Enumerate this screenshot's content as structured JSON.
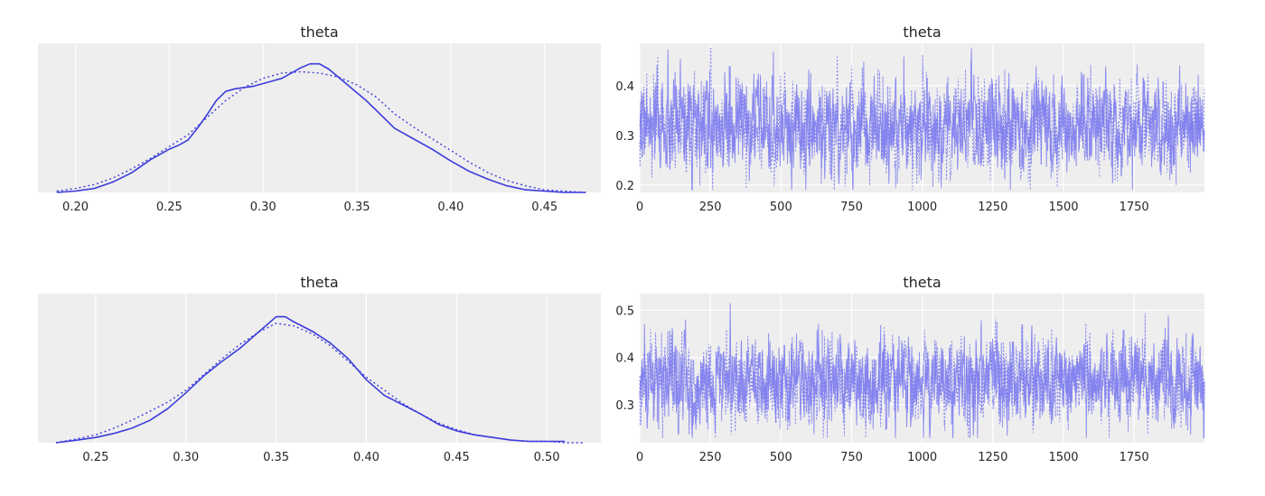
{
  "chart_data": [
    {
      "type": "line",
      "kind": "density",
      "title": "theta",
      "xlim": [
        0.18,
        0.48
      ],
      "xticks": [
        0.2,
        0.25,
        0.3,
        0.35,
        0.4,
        0.45
      ],
      "xtick_labels": [
        "0.20",
        "0.25",
        "0.30",
        "0.35",
        "0.40",
        "0.45"
      ],
      "ylim": [
        0,
        1
      ],
      "color": "#3b3bdb",
      "series": [
        {
          "style": "solid",
          "x": [
            0.19,
            0.2,
            0.21,
            0.22,
            0.23,
            0.24,
            0.25,
            0.255,
            0.26,
            0.265,
            0.27,
            0.275,
            0.28,
            0.285,
            0.29,
            0.295,
            0.3,
            0.305,
            0.31,
            0.315,
            0.32,
            0.325,
            0.33,
            0.335,
            0.34,
            0.345,
            0.35,
            0.355,
            0.36,
            0.365,
            0.37,
            0.375,
            0.38,
            0.39,
            0.4,
            0.41,
            0.42,
            0.43,
            0.44,
            0.45,
            0.46,
            0.472
          ],
          "y": [
            0.0,
            0.01,
            0.03,
            0.08,
            0.15,
            0.25,
            0.33,
            0.36,
            0.4,
            0.49,
            0.59,
            0.7,
            0.77,
            0.79,
            0.8,
            0.81,
            0.83,
            0.85,
            0.87,
            0.91,
            0.95,
            0.98,
            0.98,
            0.94,
            0.88,
            0.82,
            0.76,
            0.7,
            0.63,
            0.56,
            0.49,
            0.45,
            0.41,
            0.33,
            0.24,
            0.16,
            0.1,
            0.05,
            0.02,
            0.01,
            0.0,
            0.0
          ]
        },
        {
          "style": "dotted",
          "x": [
            0.19,
            0.2,
            0.21,
            0.22,
            0.23,
            0.24,
            0.25,
            0.26,
            0.27,
            0.28,
            0.29,
            0.3,
            0.31,
            0.32,
            0.33,
            0.34,
            0.35,
            0.36,
            0.37,
            0.38,
            0.39,
            0.4,
            0.41,
            0.42,
            0.43,
            0.44,
            0.45,
            0.46,
            0.472
          ],
          "y": [
            0.01,
            0.03,
            0.06,
            0.11,
            0.18,
            0.26,
            0.35,
            0.44,
            0.57,
            0.7,
            0.8,
            0.87,
            0.91,
            0.92,
            0.91,
            0.88,
            0.82,
            0.73,
            0.6,
            0.5,
            0.41,
            0.32,
            0.23,
            0.15,
            0.09,
            0.05,
            0.02,
            0.01,
            0.0
          ]
        }
      ]
    },
    {
      "type": "line",
      "kind": "trace",
      "title": "theta",
      "xlim": [
        0,
        1999
      ],
      "xticks": [
        0,
        250,
        500,
        750,
        1000,
        1250,
        1500,
        1750
      ],
      "xtick_labels": [
        "0",
        "250",
        "500",
        "750",
        "1000",
        "1250",
        "1500",
        "1750"
      ],
      "ylim": [
        0.185,
        0.485
      ],
      "yticks": [
        0.2,
        0.3,
        0.4
      ],
      "ytick_labels": [
        "0.2",
        "0.3",
        "0.4"
      ],
      "draws": 2000,
      "mean": 0.315,
      "sd": 0.045,
      "min": 0.19,
      "max": 0.475,
      "color": "#7b7bef",
      "series": [
        {
          "style": "solid"
        },
        {
          "style": "dotted"
        }
      ]
    },
    {
      "type": "line",
      "kind": "density",
      "title": "theta",
      "xlim": [
        0.218,
        0.53
      ],
      "xticks": [
        0.25,
        0.3,
        0.35,
        0.4,
        0.45,
        0.5
      ],
      "xtick_labels": [
        "0.25",
        "0.30",
        "0.35",
        "0.40",
        "0.45",
        "0.50"
      ],
      "ylim": [
        0,
        1
      ],
      "color": "#3b3bdb",
      "series": [
        {
          "style": "solid",
          "x": [
            0.228,
            0.24,
            0.25,
            0.26,
            0.27,
            0.28,
            0.29,
            0.3,
            0.31,
            0.32,
            0.33,
            0.34,
            0.345,
            0.35,
            0.355,
            0.36,
            0.37,
            0.38,
            0.39,
            0.4,
            0.41,
            0.42,
            0.43,
            0.44,
            0.45,
            0.46,
            0.47,
            0.48,
            0.49,
            0.5,
            0.51
          ],
          "y": [
            0.0,
            0.02,
            0.04,
            0.07,
            0.11,
            0.17,
            0.26,
            0.38,
            0.51,
            0.62,
            0.72,
            0.84,
            0.9,
            0.96,
            0.96,
            0.92,
            0.85,
            0.76,
            0.64,
            0.48,
            0.36,
            0.29,
            0.22,
            0.14,
            0.09,
            0.06,
            0.04,
            0.02,
            0.01,
            0.01,
            0.01
          ]
        },
        {
          "style": "dotted",
          "x": [
            0.228,
            0.24,
            0.25,
            0.26,
            0.27,
            0.28,
            0.29,
            0.3,
            0.31,
            0.32,
            0.33,
            0.34,
            0.35,
            0.36,
            0.37,
            0.38,
            0.39,
            0.4,
            0.41,
            0.42,
            0.43,
            0.44,
            0.45,
            0.46,
            0.47,
            0.48,
            0.49,
            0.5,
            0.51,
            0.52
          ],
          "y": [
            0.0,
            0.03,
            0.06,
            0.11,
            0.17,
            0.24,
            0.31,
            0.4,
            0.52,
            0.64,
            0.75,
            0.84,
            0.91,
            0.89,
            0.83,
            0.74,
            0.62,
            0.5,
            0.4,
            0.3,
            0.22,
            0.15,
            0.1,
            0.06,
            0.04,
            0.02,
            0.01,
            0.01,
            0.0,
            0.0
          ]
        }
      ]
    },
    {
      "type": "line",
      "kind": "trace",
      "title": "theta",
      "xlim": [
        0,
        1999
      ],
      "xticks": [
        0,
        250,
        500,
        750,
        1000,
        1250,
        1500,
        1750
      ],
      "xtick_labels": [
        "0",
        "250",
        "500",
        "750",
        "1000",
        "1250",
        "1500",
        "1750"
      ],
      "ylim": [
        0.22,
        0.535
      ],
      "yticks": [
        0.3,
        0.4,
        0.5
      ],
      "ytick_labels": [
        "0.3",
        "0.4",
        "0.5"
      ],
      "draws": 2000,
      "mean": 0.35,
      "sd": 0.045,
      "min": 0.23,
      "max": 0.52,
      "color": "#7b7bef",
      "series": [
        {
          "style": "solid"
        },
        {
          "style": "dotted"
        }
      ]
    }
  ]
}
